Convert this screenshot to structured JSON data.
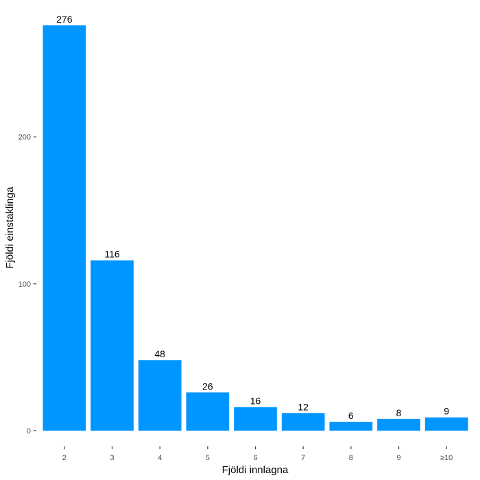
{
  "chart_data": {
    "type": "bar",
    "categories": [
      "2",
      "3",
      "4",
      "5",
      "6",
      "7",
      "8",
      "9",
      "≥10"
    ],
    "values": [
      276,
      116,
      48,
      26,
      16,
      12,
      6,
      8,
      9
    ],
    "xlabel": "Fjöldi innlagna",
    "ylabel": "Fjöldi einstaklinga",
    "ylim": [
      0,
      276
    ],
    "yticks": [
      0,
      100,
      200
    ],
    "grid": false,
    "legend": "none",
    "bar_color": "#0096FF"
  }
}
